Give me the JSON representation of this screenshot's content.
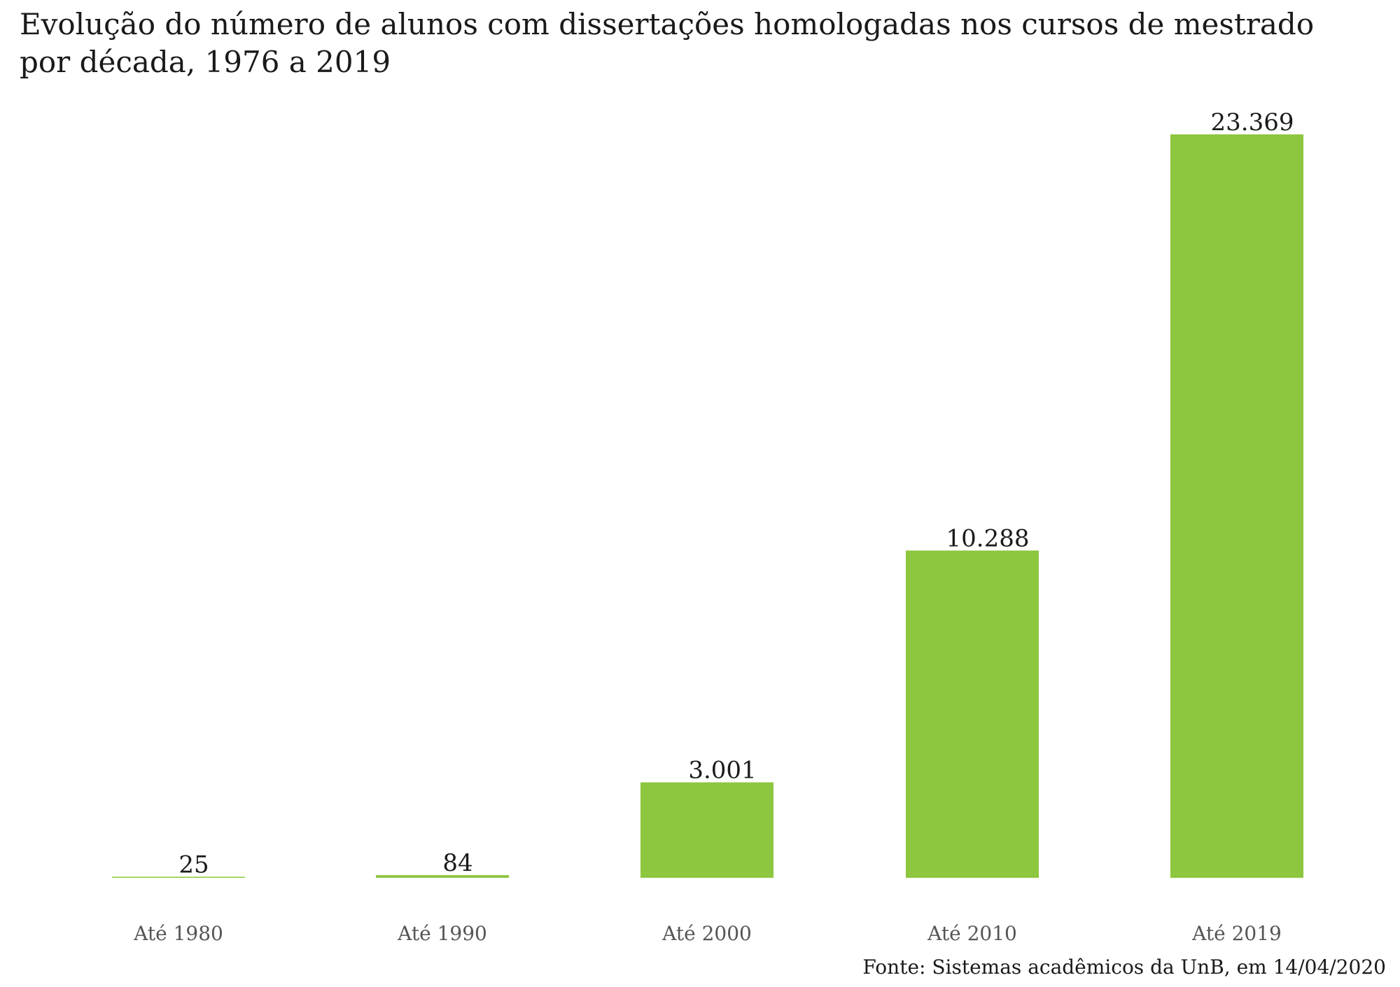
{
  "title_line1": "Evolução do número de alunos com dissertações homologadas nos cursos de mestrado",
  "title_line2": "por década, 1976 a 2019",
  "source": "Fonte: Sistemas acadêmicos da UnB, em 14/04/2020",
  "colors": {
    "bar": "#8DC63F"
  },
  "chart_data": {
    "type": "bar",
    "title": "Evolução do número de alunos com dissertações homologadas nos cursos de mestrado por década, 1976 a 2019",
    "categories": [
      "Até 1980",
      "Até 1990",
      "Até 2000",
      "Até 2010",
      "Até 2019"
    ],
    "values": [
      25,
      84,
      3001,
      10288,
      23369
    ],
    "value_labels": [
      "25",
      "84",
      "3.001",
      "10.288",
      "23.369"
    ],
    "xlabel": "",
    "ylabel": "",
    "ylim": [
      0,
      23369
    ],
    "grid": false,
    "legend": "none"
  }
}
